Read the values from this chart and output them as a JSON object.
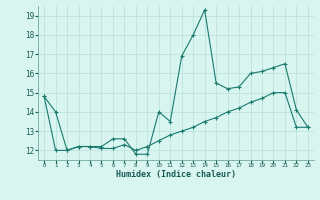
{
  "xlabel": "Humidex (Indice chaleur)",
  "x": [
    0,
    1,
    2,
    3,
    4,
    5,
    6,
    7,
    8,
    9,
    10,
    11,
    12,
    13,
    14,
    15,
    16,
    17,
    18,
    19,
    20,
    21,
    22,
    23
  ],
  "line1": [
    14.8,
    14.0,
    12.0,
    12.2,
    12.2,
    12.2,
    12.6,
    12.6,
    11.8,
    11.8,
    14.0,
    13.5,
    16.9,
    18.0,
    19.3,
    15.5,
    15.2,
    15.3,
    16.0,
    16.1,
    16.3,
    16.5,
    14.1,
    13.2
  ],
  "line2": [
    14.8,
    12.0,
    12.0,
    12.2,
    12.2,
    12.1,
    12.1,
    12.3,
    12.0,
    12.2,
    12.5,
    12.8,
    13.0,
    13.2,
    13.5,
    13.7,
    14.0,
    14.2,
    14.5,
    14.7,
    15.0,
    15.0,
    13.2,
    13.2
  ],
  "line_color": "#1a7a6e",
  "bg_color": "#d8f5f0",
  "grid_color": "#b8e0da",
  "ylim": [
    11.5,
    19.5
  ],
  "yticks": [
    12,
    13,
    14,
    15,
    16,
    17,
    18,
    19
  ],
  "xlim": [
    -0.5,
    23.5
  ],
  "xticks": [
    0,
    1,
    2,
    3,
    4,
    5,
    6,
    7,
    8,
    9,
    10,
    11,
    12,
    13,
    14,
    15,
    16,
    17,
    18,
    19,
    20,
    21,
    22,
    23
  ]
}
